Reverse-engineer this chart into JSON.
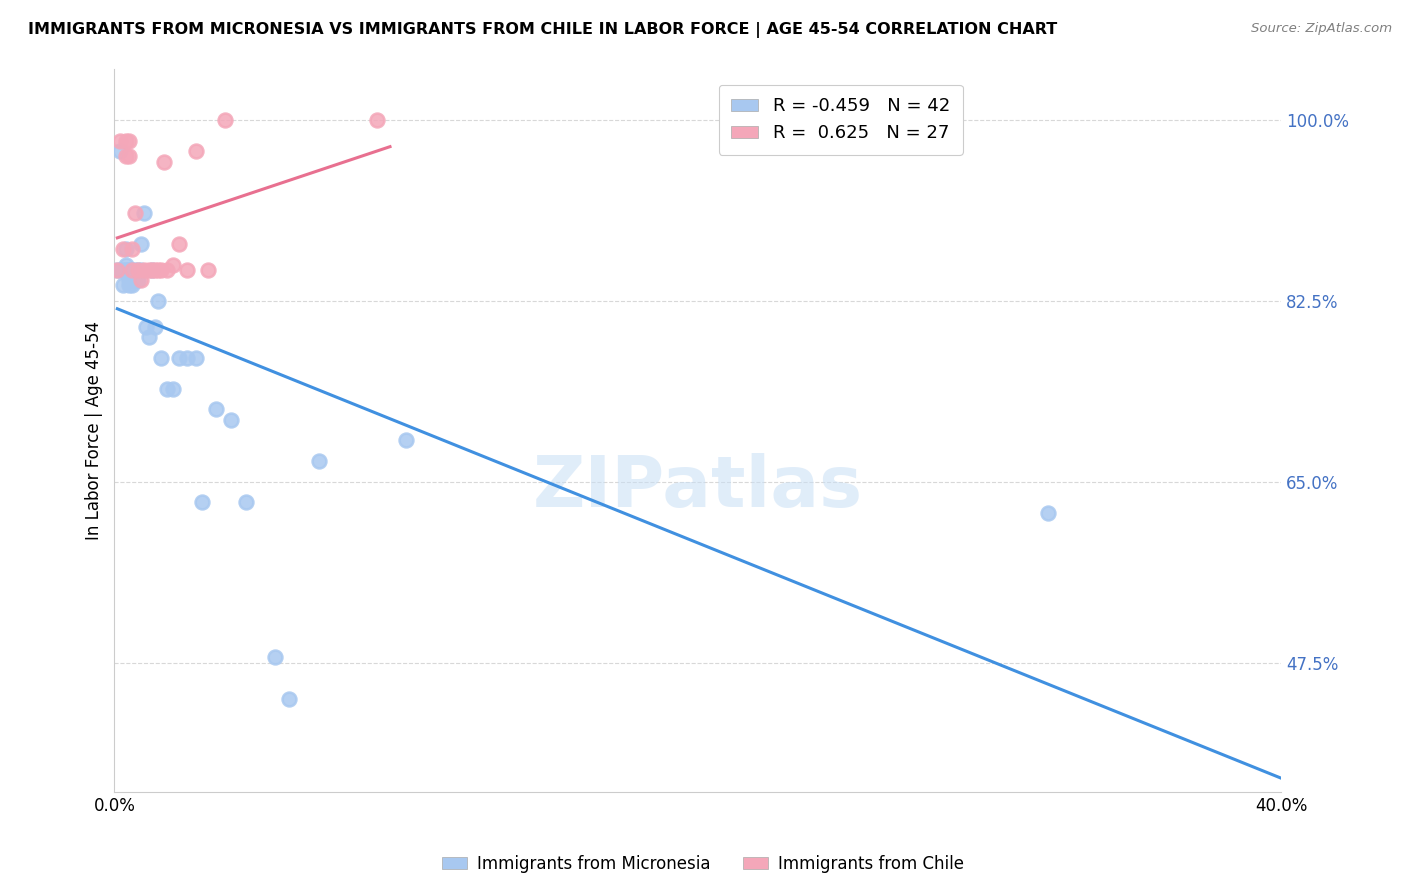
{
  "title": "IMMIGRANTS FROM MICRONESIA VS IMMIGRANTS FROM CHILE IN LABOR FORCE | AGE 45-54 CORRELATION CHART",
  "source": "Source: ZipAtlas.com",
  "xlabel": "",
  "ylabel": "In Labor Force | Age 45-54",
  "xlim": [
    0.0,
    0.4
  ],
  "ylim": [
    0.35,
    1.05
  ],
  "yticks": [
    0.475,
    0.65,
    0.825,
    1.0
  ],
  "ytick_labels": [
    "47.5%",
    "65.0%",
    "82.5%",
    "100.0%"
  ],
  "xticks": [
    0.0,
    0.1,
    0.2,
    0.3,
    0.4
  ],
  "xtick_labels": [
    "0.0%",
    "",
    "",
    "",
    "40.0%"
  ],
  "micronesia_color": "#a8c8f0",
  "chile_color": "#f4a7b9",
  "micronesia_line_color": "#4090e0",
  "chile_line_color": "#e87090",
  "R_micronesia": -0.459,
  "N_micronesia": 42,
  "R_chile": 0.625,
  "N_chile": 27,
  "legend_label_micronesia": "Immigrants from Micronesia",
  "legend_label_chile": "Immigrants from Chile",
  "watermark": "ZIPatlas",
  "micronesia_x": [
    0.001,
    0.002,
    0.002,
    0.003,
    0.003,
    0.004,
    0.004,
    0.004,
    0.005,
    0.005,
    0.005,
    0.005,
    0.006,
    0.006,
    0.006,
    0.007,
    0.007,
    0.008,
    0.008,
    0.009,
    0.009,
    0.01,
    0.011,
    0.012,
    0.013,
    0.014,
    0.015,
    0.016,
    0.018,
    0.02,
    0.022,
    0.025,
    0.028,
    0.03,
    0.035,
    0.04,
    0.045,
    0.055,
    0.06,
    0.07,
    0.1,
    0.32
  ],
  "micronesia_y": [
    0.855,
    0.97,
    0.855,
    0.855,
    0.84,
    0.86,
    0.855,
    0.875,
    0.855,
    0.84,
    0.845,
    0.855,
    0.845,
    0.855,
    0.84,
    0.845,
    0.855,
    0.845,
    0.855,
    0.855,
    0.88,
    0.91,
    0.8,
    0.79,
    0.855,
    0.8,
    0.825,
    0.77,
    0.74,
    0.74,
    0.77,
    0.77,
    0.77,
    0.63,
    0.72,
    0.71,
    0.63,
    0.48,
    0.44,
    0.67,
    0.69,
    0.62
  ],
  "chile_x": [
    0.001,
    0.002,
    0.003,
    0.004,
    0.004,
    0.005,
    0.005,
    0.006,
    0.006,
    0.007,
    0.008,
    0.009,
    0.01,
    0.012,
    0.013,
    0.014,
    0.015,
    0.016,
    0.017,
    0.018,
    0.02,
    0.022,
    0.025,
    0.028,
    0.032,
    0.038,
    0.09
  ],
  "chile_y": [
    0.855,
    0.98,
    0.875,
    0.98,
    0.965,
    0.98,
    0.965,
    0.875,
    0.855,
    0.91,
    0.855,
    0.845,
    0.855,
    0.855,
    0.855,
    0.855,
    0.855,
    0.855,
    0.96,
    0.855,
    0.86,
    0.88,
    0.855,
    0.97,
    0.855,
    1.0,
    1.0
  ]
}
